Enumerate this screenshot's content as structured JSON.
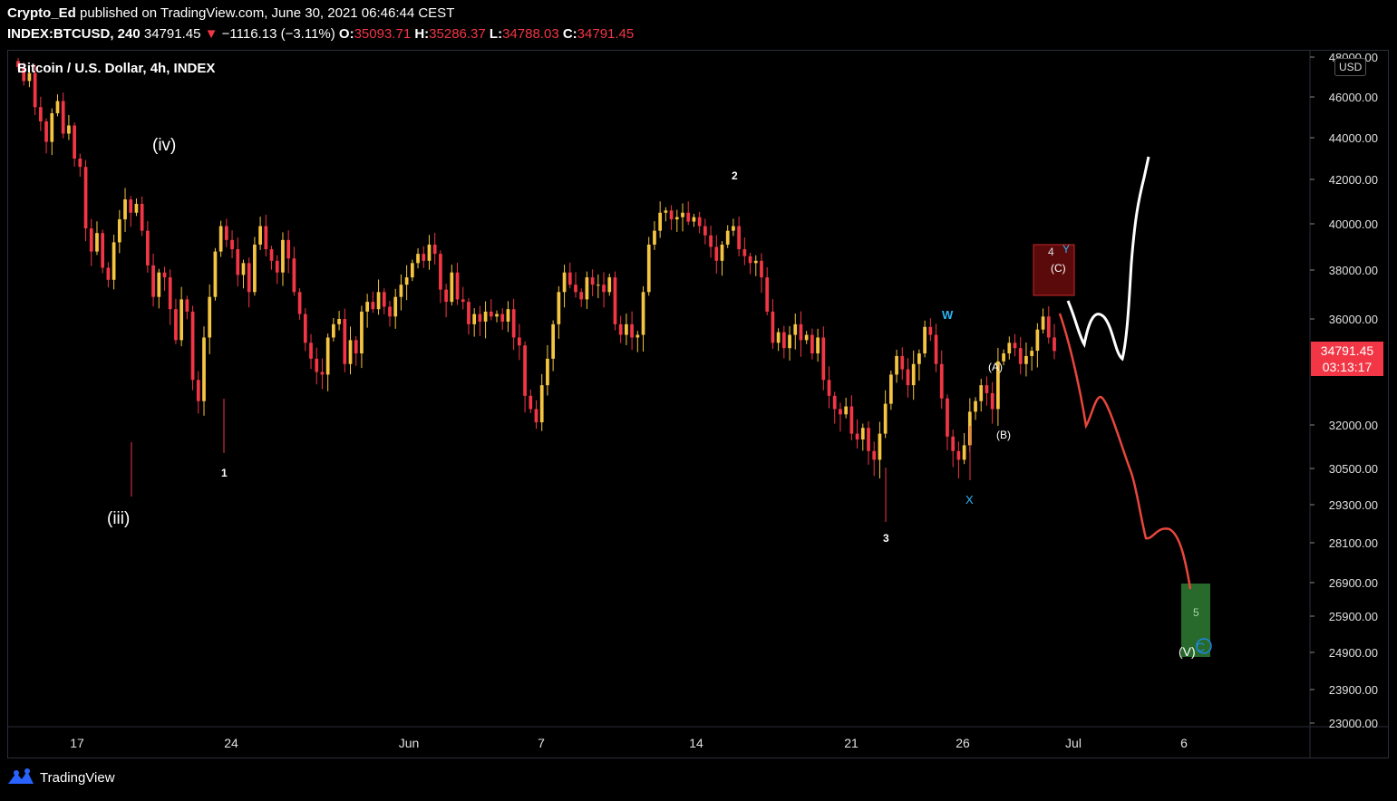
{
  "header": {
    "author": "Crypto_Ed",
    "published": "published on TradingView.com, June 30, 2021 06:46:44 CEST",
    "symbol": "INDEX:BTCUSD, 240",
    "last": "34791.45",
    "change_arrow": "▼",
    "change": "−1116.13 (−3.11%)",
    "o_label": "O:",
    "o": "35093.71",
    "h_label": "H:",
    "h": "35286.37",
    "l_label": "L:",
    "l": "34788.03",
    "c_label": "C:",
    "c": "34791.45"
  },
  "chart_title": "Bitcoin / U.S. Dollar, 4h, INDEX",
  "currency_badge": "USD",
  "price_tag": {
    "price": "34791.45",
    "countdown": "03:13:17"
  },
  "footer": {
    "brand": "TradingView"
  },
  "colors": {
    "up": "#f5c542",
    "down": "#f23645",
    "tag": "#f23645",
    "projection_down": "#e8463c",
    "projection_up": "#ffffff",
    "wave_cyan": "#29b6f6"
  },
  "chart_data": {
    "type": "candlestick",
    "y_ticks": [
      "48000.00",
      "46000.00",
      "44000.00",
      "42000.00",
      "40000.00",
      "38000.00",
      "36000.00",
      "32000.00",
      "30500.00",
      "29300.00",
      "28100.00",
      "26900.00",
      "25900.00",
      "24900.00",
      "23900.00",
      "23000.00"
    ],
    "x_ticks": [
      "17",
      "24",
      "Jun",
      "7",
      "14",
      "21",
      "26",
      "Jul",
      "6"
    ],
    "close": [
      47500,
      46800,
      47200,
      45500,
      44800,
      43800,
      45200,
      45800,
      44200,
      44600,
      43000,
      42600,
      39800,
      38800,
      39600,
      38100,
      37600,
      39200,
      40200,
      41100,
      40500,
      40900,
      39700,
      38200,
      36900,
      37900,
      37700,
      36400,
      35200,
      36800,
      36300,
      33700,
      32900,
      35300,
      36900,
      38800,
      39900,
      39300,
      38900,
      37800,
      38300,
      37100,
      39100,
      39900,
      38900,
      38400,
      37900,
      39300,
      38500,
      37100,
      36200,
      35100,
      34500,
      34000,
      33900,
      35300,
      35800,
      36000,
      34300,
      35200,
      34700,
      36300,
      36700,
      36400,
      37100,
      36500,
      36100,
      36900,
      37400,
      37700,
      38300,
      38700,
      38400,
      39100,
      38700,
      37200,
      36700,
      37900,
      36800,
      36700,
      35800,
      36200,
      35900,
      36300,
      36100,
      36200,
      35900,
      36400,
      35300,
      35000,
      33100,
      32600,
      32100,
      33500,
      34500,
      35800,
      37100,
      37900,
      37400,
      37100,
      36800,
      37700,
      37400,
      37400,
      37100,
      37700,
      35800,
      35400,
      35800,
      35300,
      35400,
      37100,
      39100,
      39700,
      40500,
      40600,
      40200,
      40300,
      40500,
      40100,
      40300,
      39900,
      39500,
      39000,
      38400,
      39100,
      39700,
      39900,
      38900,
      38600,
      38300,
      38400,
      37700,
      36300,
      35100,
      35500,
      34900,
      35400,
      35800,
      35200,
      35400,
      34700,
      35300,
      33700,
      33100,
      32600,
      32400,
      32700,
      31700,
      31500,
      31900,
      31100,
      30800,
      31700,
      32800,
      33900,
      34600,
      34100,
      33500,
      34300,
      34700,
      35700,
      35400,
      34300,
      33000,
      31600,
      31100,
      30800,
      31300,
      32500,
      32900,
      33500,
      33200,
      32600,
      34400,
      34700,
      35100,
      34900,
      34300,
      34600,
      34800,
      35600,
      36100,
      35300,
      34791
    ]
  },
  "annotations": [
    "(iii)",
    "(iv)",
    "1",
    "2",
    "3",
    "W",
    "X",
    "Y",
    "(A)",
    "(B)",
    "(C)",
    "4",
    "5",
    "(V)",
    "C"
  ]
}
